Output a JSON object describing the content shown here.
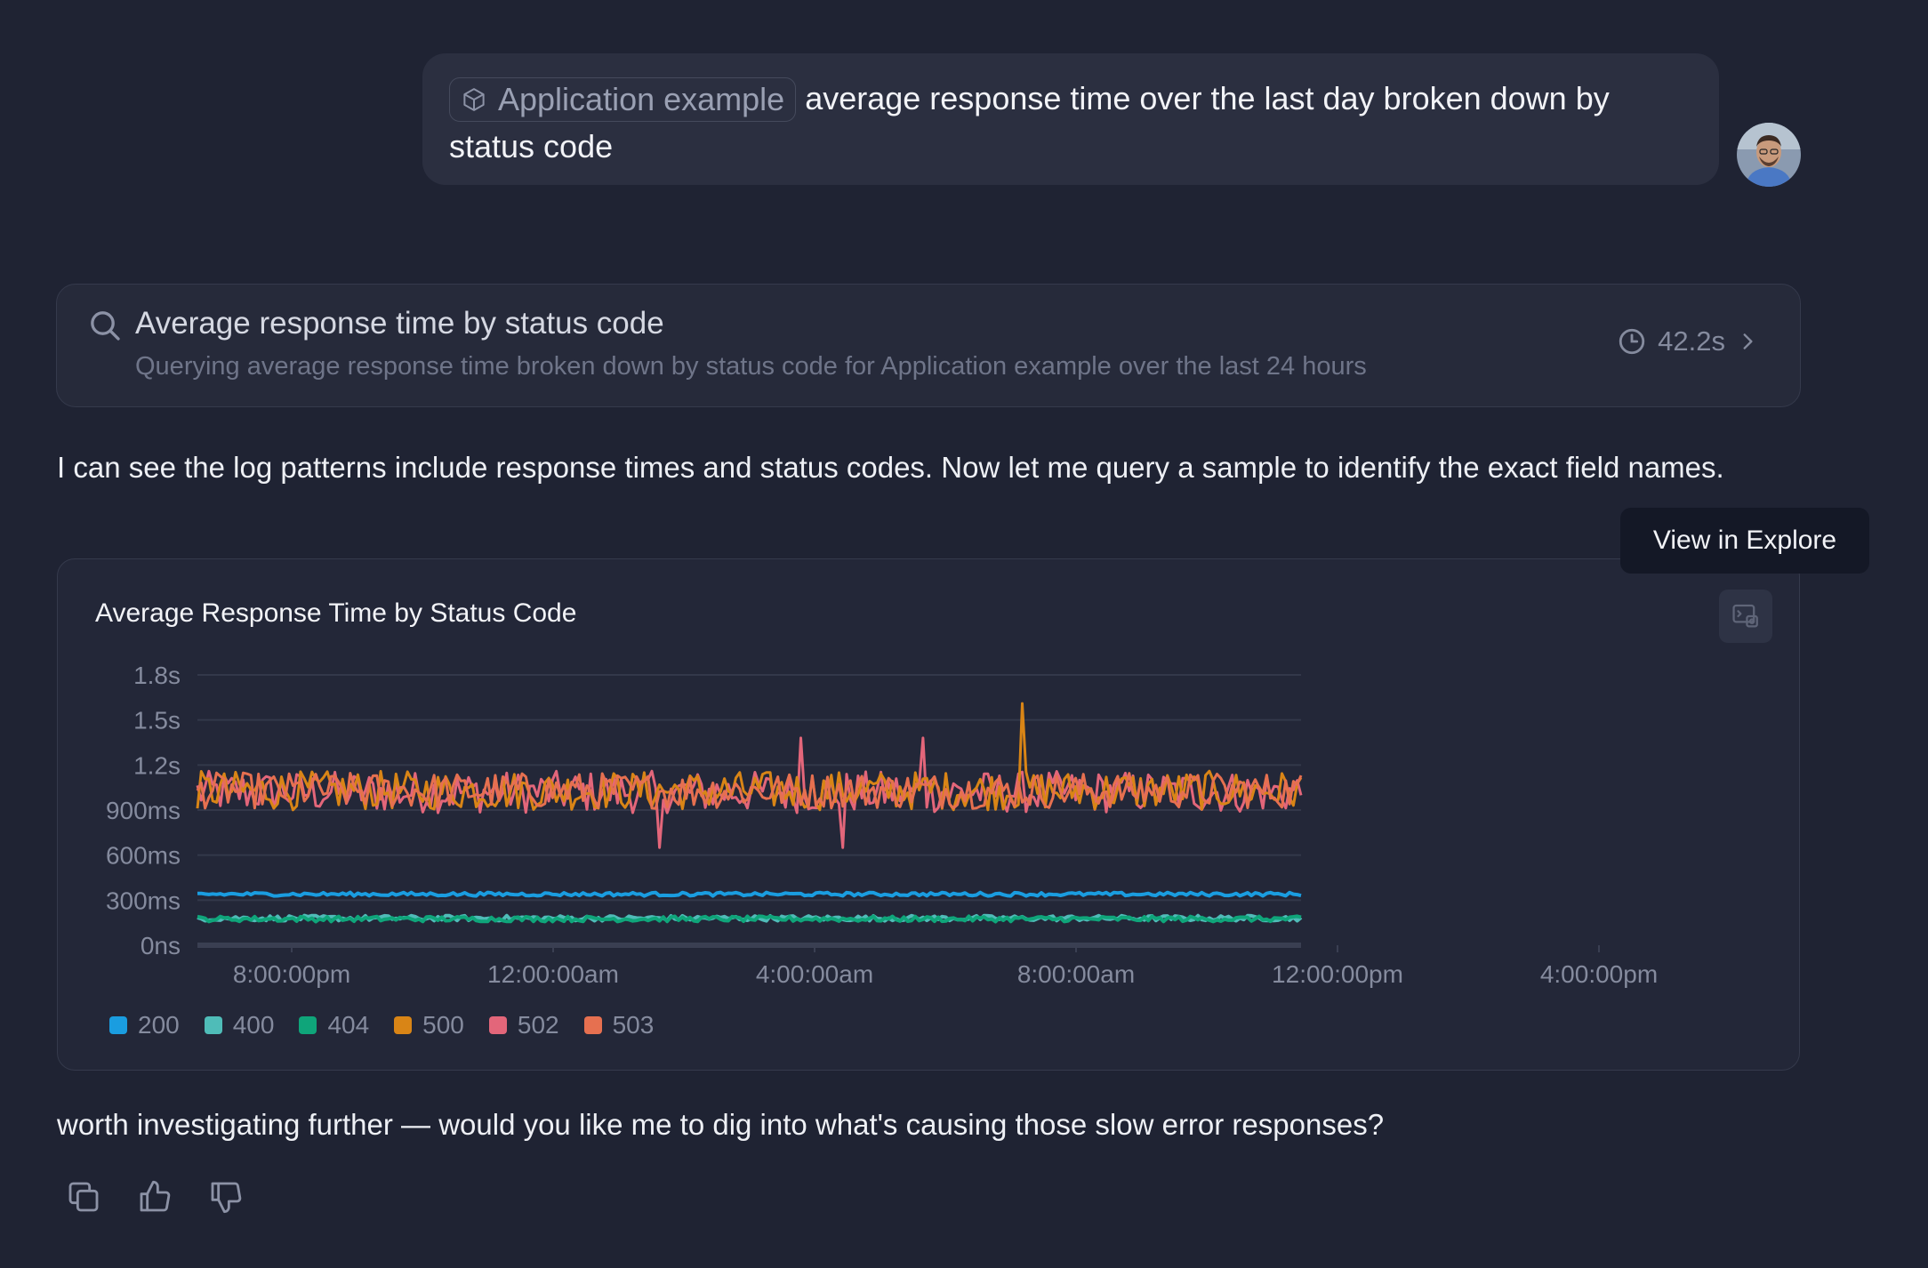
{
  "user_message": {
    "chip_label": "Application example",
    "chip_icon": "cube-icon",
    "text": "average response time over the last day broken down by status code"
  },
  "query_card": {
    "title": "Average response time by status code",
    "subtitle": "Querying average response time broken down by status code for Application example over the last 24 hours",
    "duration": "42.2s"
  },
  "assistant": {
    "text_1": "I can see the log patterns include response times and status codes. Now let me query a sample to identify the exact field names.",
    "text_2": "worth investigating further — would you like me to dig into what's causing those slow error responses?"
  },
  "tooltip": "View in Explore",
  "chart_data": {
    "type": "line",
    "title": "Average Response Time by Status Code",
    "yticks": [
      "0ns",
      "300ms",
      "600ms",
      "900ms",
      "1.2s",
      "1.5s",
      "1.8s"
    ],
    "ylim_ms": [
      0,
      1800
    ],
    "xticks": [
      "8:00:00pm",
      "12:00:00am",
      "4:00:00am",
      "8:00:00am",
      "12:00:00pm",
      "4:00:00pm"
    ],
    "x_range_hours": [
      18.6,
      42.8
    ],
    "grid": true,
    "legend_position": "bottom-left",
    "series": [
      {
        "name": "200",
        "color": "#1a9de0",
        "mean_ms": 340,
        "noise_ms": 12
      },
      {
        "name": "400",
        "color": "#4fbcb8",
        "mean_ms": 180,
        "noise_ms": 18
      },
      {
        "name": "404",
        "color": "#0fa57a",
        "mean_ms": 175,
        "noise_ms": 18
      },
      {
        "name": "500",
        "color": "#d98516",
        "mean_ms": 1030,
        "noise_ms": 130,
        "spike_ms": 1610
      },
      {
        "name": "502",
        "color": "#e3667a",
        "mean_ms": 1020,
        "noise_ms": 140
      },
      {
        "name": "503",
        "color": "#e67050",
        "mean_ms": 1030,
        "noise_ms": 120
      }
    ]
  }
}
